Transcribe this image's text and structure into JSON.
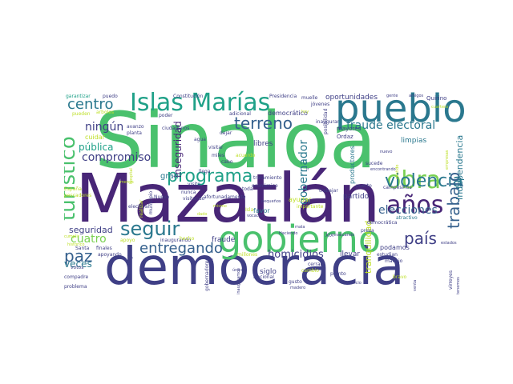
{
  "colors": {
    "dark_purple": "#482677",
    "indigo": "#3f3f86",
    "blue": "#35608d",
    "teal": "#2a788e",
    "cyan_green": "#1fa188",
    "green": "#4ac16d",
    "light_green": "#7ad151",
    "yellow_green": "#bddf26"
  },
  "words": [
    {
      "text": "Sinaloa",
      "color": "green"
    },
    {
      "text": "Mazatlán",
      "color": "dark_purple"
    },
    {
      "text": "democracia",
      "color": "indigo"
    },
    {
      "text": "pueblo",
      "color": "teal"
    },
    {
      "text": "gobierno",
      "color": "green"
    },
    {
      "text": "Islas Marías",
      "color": "cyan_green"
    },
    {
      "text": "programa",
      "color": "cyan_green"
    },
    {
      "text": "años",
      "color": "dark_purple"
    },
    {
      "text": "obra",
      "color": "light_green"
    },
    {
      "text": "turístico",
      "color": "green"
    },
    {
      "text": "seguir",
      "color": "teal"
    },
    {
      "text": "violencia",
      "color": "teal"
    },
    {
      "text": "centro",
      "color": "teal"
    },
    {
      "text": "terreno",
      "color": "blue"
    },
    {
      "text": "paz",
      "color": "blue"
    },
    {
      "text": "país",
      "color": "indigo"
    },
    {
      "text": "trabajo",
      "color": "blue"
    },
    {
      "text": "entregando",
      "color": "blue"
    },
    {
      "text": "elecciones",
      "color": "blue"
    },
    {
      "text": "fraude electoral",
      "color": "teal"
    },
    {
      "text": "gobernador",
      "color": "teal"
    },
    {
      "text": "compromiso",
      "color": "indigo"
    },
    {
      "text": "ningún",
      "color": "indigo"
    },
    {
      "text": "homicidios",
      "color": "indigo"
    },
    {
      "text": "cuatro",
      "color": "light_green"
    },
    {
      "text": "Independencia",
      "color": "teal"
    },
    {
      "text": "inseguridad",
      "color": "dark_purple"
    },
    {
      "text": "tranquilidad",
      "color": "yellow_green"
    },
    {
      "text": "pública",
      "color": "cyan_green"
    },
    {
      "text": "seguridad",
      "color": "indigo"
    },
    {
      "text": "veces",
      "color": "teal"
    },
    {
      "text": "democrático",
      "color": "indigo"
    },
    {
      "text": "oportunidades",
      "color": "indigo"
    },
    {
      "text": "partido",
      "color": "indigo"
    },
    {
      "text": "podamos",
      "color": "indigo"
    },
    {
      "text": "llevar",
      "color": "indigo"
    },
    {
      "text": "fraude",
      "color": "indigo"
    },
    {
      "text": "libres",
      "color": "indigo"
    },
    {
      "text": "gran",
      "color": "teal"
    },
    {
      "text": "productores",
      "color": "teal"
    },
    {
      "text": "siglo",
      "color": "indigo"
    },
    {
      "text": "favor",
      "color": "teal"
    },
    {
      "text": "ayudar",
      "color": "yellow_green"
    },
    {
      "text": "limpias",
      "color": "teal"
    },
    {
      "text": "cuidar",
      "color": "yellow_green"
    },
    {
      "text": "garantizar",
      "color": "cyan_green"
    },
    {
      "text": "puedo",
      "color": "indigo"
    },
    {
      "text": "Constitución",
      "color": "indigo"
    },
    {
      "text": "Presidencia",
      "color": "indigo"
    },
    {
      "text": "muelle",
      "color": "indigo"
    },
    {
      "text": "jóvenes",
      "color": "indigo"
    },
    {
      "text": "Quirino",
      "color": "indigo"
    },
    {
      "text": "Ordaz",
      "color": "indigo"
    },
    {
      "text": "mayores",
      "color": "indigo"
    },
    {
      "text": "adicional",
      "color": "indigo"
    },
    {
      "text": "pueden",
      "color": "yellow_green"
    },
    {
      "text": "arboles",
      "color": "yellow_green"
    },
    {
      "text": "avanzo",
      "color": "indigo"
    },
    {
      "text": "planta",
      "color": "indigo"
    },
    {
      "text": "ciudadanos",
      "color": "indigo"
    },
    {
      "text": "poder",
      "color": "indigo"
    },
    {
      "text": "España",
      "color": "yellow_green"
    },
    {
      "text": "pescadores",
      "color": "yellow_green"
    },
    {
      "text": "agua",
      "color": "indigo"
    },
    {
      "text": "cabo",
      "color": "indigo"
    },
    {
      "text": "dejar",
      "color": "indigo"
    },
    {
      "text": "miles",
      "color": "indigo"
    },
    {
      "text": "visitar",
      "color": "indigo"
    },
    {
      "text": "inaugurar",
      "color": "indigo"
    },
    {
      "text": "posibilidad",
      "color": "indigo"
    },
    {
      "text": "tratamiento",
      "color": "indigo"
    },
    {
      "text": "visita",
      "color": "indigo"
    },
    {
      "text": "económico",
      "color": "indigo"
    },
    {
      "text": "nunca",
      "color": "indigo"
    },
    {
      "text": "toda",
      "color": "indigo"
    },
    {
      "text": "afortunadamente",
      "color": "indigo"
    },
    {
      "text": "importante",
      "color": "yellow_green"
    },
    {
      "text": "trabajar",
      "color": "indigo"
    },
    {
      "text": "puerto",
      "color": "indigo"
    },
    {
      "text": "campesinos",
      "color": "indigo"
    },
    {
      "text": "atractivo",
      "color": "teal"
    },
    {
      "text": "sucede",
      "color": "indigo"
    },
    {
      "text": "encontrando",
      "color": "indigo"
    },
    {
      "text": "Nueva",
      "color": "indigo"
    },
    {
      "text": "visitando",
      "color": "indigo"
    },
    {
      "text": "llega",
      "color": "indigo"
    },
    {
      "text": "acuerdo",
      "color": "yellow_green"
    },
    {
      "text": "apoyo",
      "color": "yellow_green"
    },
    {
      "text": "inaugurando",
      "color": "indigo"
    },
    {
      "text": "hecho",
      "color": "yellow_green"
    },
    {
      "text": "Santa",
      "color": "indigo"
    },
    {
      "text": "finales",
      "color": "indigo"
    },
    {
      "text": "compadre",
      "color": "indigo"
    },
    {
      "text": "votos",
      "color": "indigo"
    },
    {
      "text": "electoral",
      "color": "indigo"
    },
    {
      "text": "apoyando",
      "color": "indigo"
    },
    {
      "text": "problema",
      "color": "indigo"
    },
    {
      "text": "Nacional",
      "color": "indigo"
    },
    {
      "text": "gusto",
      "color": "indigo"
    },
    {
      "text": "cambio",
      "color": "yellow_green"
    },
    {
      "text": "cerrar",
      "color": "indigo"
    },
    {
      "text": "pronto",
      "color": "indigo"
    },
    {
      "text": "manejo",
      "color": "indigo"
    },
    {
      "text": "estudian",
      "color": "indigo"
    },
    {
      "text": "presa",
      "color": "indigo"
    },
    {
      "text": "democrática",
      "color": "indigo"
    },
    {
      "text": "virreyes",
      "color": "indigo"
    },
    {
      "text": "XIX",
      "color": "indigo"
    },
    {
      "text": "mala",
      "color": "indigo"
    },
    {
      "text": "Isla",
      "color": "yellow_green"
    },
    {
      "text": "pequeños",
      "color": "indigo"
    },
    {
      "text": "vocación",
      "color": "indigo"
    },
    {
      "text": "lr",
      "color": "indigo"
    },
    {
      "text": "municipio",
      "color": "indigo"
    },
    {
      "text": "realizar",
      "color": "yellow_green"
    },
    {
      "text": "ecológico",
      "color": "indigo"
    },
    {
      "text": "reelección",
      "color": "indigo"
    },
    {
      "text": "gobernadores",
      "color": "indigo"
    },
    {
      "text": "millones",
      "color": "yellow_green"
    },
    {
      "text": "único",
      "color": "indigo"
    },
    {
      "text": "madero",
      "color": "indigo"
    },
    {
      "text": "beneficio",
      "color": "indigo"
    },
    {
      "text": "bravo",
      "color": "yellow_green"
    },
    {
      "text": "venta",
      "color": "indigo"
    },
    {
      "text": "inauguramos",
      "color": "indigo"
    },
    {
      "text": "Haciendo",
      "color": "indigo"
    },
    {
      "text": "evaluando",
      "color": "indigo"
    },
    {
      "text": "gente",
      "color": "indigo"
    },
    {
      "text": "amigos",
      "color": "indigo"
    },
    {
      "text": "cuartero",
      "color": "yellow_green"
    },
    {
      "text": "nuevo",
      "color": "indigo"
    },
    {
      "text": "hoy",
      "color": "yellow_green"
    },
    {
      "text": "empresas",
      "color": "yellow_green"
    },
    {
      "text": "sentido",
      "color": "yellow_green"
    },
    {
      "text": "menos",
      "color": "yellow_green"
    },
    {
      "text": "hospital",
      "color": "yellow_green"
    },
    {
      "text": "dado",
      "color": "yellow_green"
    },
    {
      "text": "mismo",
      "color": "yellow_green"
    },
    {
      "text": "cumplir",
      "color": "yellow_green"
    },
    {
      "text": "historico",
      "color": "yellow_green"
    },
    {
      "text": "estados",
      "color": "indigo"
    },
    {
      "text": "tenemos",
      "color": "indigo"
    }
  ]
}
